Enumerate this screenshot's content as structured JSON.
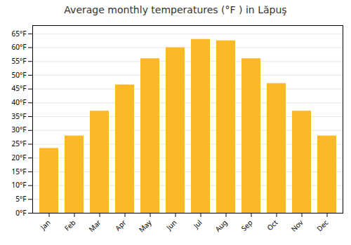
{
  "chart_data": {
    "type": "bar",
    "title": "Average monthly temperatures (°F ) in Lăpuş",
    "categories": [
      "Jan",
      "Feb",
      "Mar",
      "Apr",
      "May",
      "Jun",
      "Jul",
      "Aug",
      "Sep",
      "Oct",
      "Nov",
      "Dec"
    ],
    "values": [
      23.5,
      28,
      37,
      46.5,
      56,
      60,
      63,
      62.5,
      56,
      47,
      37,
      28
    ],
    "color": "#FDB828",
    "ylim": [
      0,
      68
    ],
    "yticks": [
      {
        "value": 0,
        "label": "0°F"
      },
      {
        "value": 5,
        "label": "5°F"
      },
      {
        "value": 10,
        "label": "10°F"
      },
      {
        "value": 15,
        "label": "15°F"
      },
      {
        "value": 20,
        "label": "20°F"
      },
      {
        "value": 25,
        "label": "25°F"
      },
      {
        "value": 30,
        "label": "30°F"
      },
      {
        "value": 35,
        "label": "35°F"
      },
      {
        "value": 40,
        "label": "40°F"
      },
      {
        "value": 45,
        "label": "45°F"
      },
      {
        "value": 50,
        "label": "50°F"
      },
      {
        "value": 55,
        "label": "55°F"
      },
      {
        "value": 60,
        "label": "60°F"
      },
      {
        "value": 65,
        "label": "65°F"
      }
    ],
    "grid": true
  }
}
